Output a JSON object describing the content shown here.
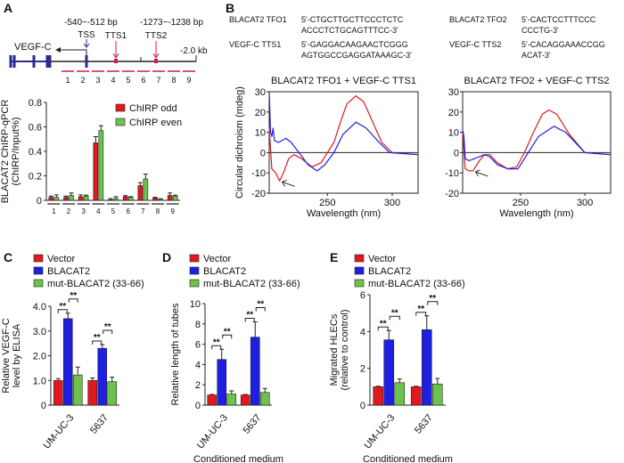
{
  "colors": {
    "red": "#e0191e",
    "blue": "#1f1fe0",
    "green": "#6cc24a",
    "navy": "#2b2b8f",
    "gene_red": "#d4184a"
  },
  "panel_labels": [
    "A",
    "B",
    "C",
    "D",
    "E"
  ],
  "gene_diagram": {
    "gene_label": "VEGF-C",
    "tss_label": "TSS",
    "tts1_label": "TTS1",
    "tts1_range": "-540~-512 bp",
    "tts2_label": "TTS2",
    "tts2_range": "-1273~-1238 bp",
    "scale_label": "-2.0 kb",
    "regions": [
      "1",
      "2",
      "3",
      "4",
      "5",
      "6",
      "7",
      "8",
      "9"
    ]
  },
  "sequences": [
    {
      "name": "BLACAT2 TFO1",
      "line1": "5'-CTGCTTGCTTCCCTCTC",
      "line2": "ACCCTCTGCAGTTTCC-3'"
    },
    {
      "name": "VEGF-C TTS1",
      "line1": "5'-GAGGACAAGAACTCGGG",
      "line2": "AGTGGCCGAGGATAAAGC-3'"
    },
    {
      "name": "BLACAT2 TFO2",
      "line1": "5'-CACTCCTTTCCC",
      "line2": "CCCTG-3'"
    },
    {
      "name": "VEGF-C TTS2",
      "line1": "5'-CACAGGAAACCGG",
      "line2": "ACAT-3'"
    }
  ],
  "chart_data": [
    {
      "id": "A",
      "type": "bar",
      "ylabel": "BLACAT2 ChIRP-qPCR",
      "ylabel2": "(ChIRP/Input%)",
      "categories": [
        "1",
        "2",
        "3",
        "4",
        "5",
        "6",
        "7",
        "8",
        "9"
      ],
      "ylim": [
        0,
        0.8
      ],
      "yticks": [
        "0",
        "0.2",
        "0.4",
        "0.6",
        "0.8"
      ],
      "legend_position": "top-right",
      "series": [
        {
          "name": "ChIRP odd",
          "color": "#e0191e",
          "values": [
            0.025,
            0.025,
            0.03,
            0.47,
            0.005,
            0.03,
            0.12,
            0.02,
            0.04
          ],
          "errors": [
            0.01,
            0.01,
            0.015,
            0.05,
            0.01,
            0.008,
            0.025,
            0.005,
            0.02
          ]
        },
        {
          "name": "ChIRP even",
          "color": "#6cc24a",
          "values": [
            0.025,
            0.04,
            0.035,
            0.57,
            0.015,
            0.025,
            0.175,
            0.01,
            0.035
          ],
          "errors": [
            0.02,
            0.02,
            0.008,
            0.04,
            0.015,
            0.005,
            0.04,
            0.003,
            0.008
          ]
        }
      ]
    },
    {
      "id": "B1",
      "type": "line",
      "title": "BLACAT2 TFO1 + VEGF-C TTS1",
      "xlabel": "Wavelength (nm)",
      "ylabel": "Circular dichroism (mdeg)",
      "xlim": [
        205,
        320
      ],
      "ylim": [
        -20,
        30
      ],
      "xticks": [
        "250",
        "300"
      ],
      "yticks": [
        "-20",
        "-10",
        "0",
        "10",
        "20",
        "30"
      ],
      "series": [
        {
          "color": "#e0191e",
          "x": [
            205,
            207,
            210,
            213,
            216,
            220,
            224,
            230,
            238,
            245,
            250,
            255,
            260,
            265,
            272,
            278,
            285,
            292,
            300,
            320
          ],
          "y": [
            12,
            -8,
            -10,
            -14,
            -10,
            -3,
            -1,
            -3,
            -7,
            -5,
            0,
            5,
            15,
            24,
            28,
            25,
            15,
            5,
            0,
            -1
          ]
        },
        {
          "color": "#1f1fe0",
          "x": [
            205,
            206,
            207,
            208,
            209,
            212,
            218,
            222,
            228,
            235,
            242,
            248,
            255,
            262,
            272,
            280,
            290,
            298,
            320
          ],
          "y": [
            30,
            10,
            8,
            12,
            6,
            5,
            7,
            5,
            0,
            -6,
            -9,
            -6,
            0,
            9,
            15,
            12,
            5,
            0,
            -1
          ]
        }
      ],
      "arrow_at": [
        213,
        -14
      ]
    },
    {
      "id": "B2",
      "type": "line",
      "title": "BLACAT2 TFO2 + VEGF-C TTS2",
      "xlabel": "Wavelength (nm)",
      "xlim": [
        205,
        320
      ],
      "ylim": [
        -20,
        30
      ],
      "xticks": [
        "250",
        "300"
      ],
      "yticks": [
        "-20",
        "-10",
        "0",
        "10",
        "20",
        "30"
      ],
      "series": [
        {
          "color": "#e0191e",
          "x": [
            205,
            207,
            210,
            213,
            218,
            222,
            226,
            232,
            240,
            247,
            253,
            260,
            267,
            272,
            278,
            288,
            300,
            320
          ],
          "y": [
            10,
            -8,
            -9,
            -9,
            -4,
            -1,
            -1,
            -5,
            -8,
            -7,
            0,
            10,
            19,
            21,
            19,
            9,
            0,
            -1
          ]
        },
        {
          "color": "#1f1fe0",
          "x": [
            205,
            206,
            207,
            210,
            214,
            218,
            222,
            226,
            232,
            240,
            248,
            256,
            264,
            276,
            285,
            300,
            320
          ],
          "y": [
            11,
            8,
            -3,
            -4,
            -3,
            -2,
            -1,
            -2,
            -6,
            -8,
            -8,
            0,
            8,
            13,
            10,
            0,
            -1
          ]
        }
      ],
      "arrow_at": [
        213,
        -9
      ]
    },
    {
      "id": "C",
      "type": "bar",
      "ylabel": "Relative VEGF-C",
      "ylabel2": "level by ELISA",
      "categories": [
        "UM-UC-3",
        "5637"
      ],
      "ylim": [
        0,
        4
      ],
      "yticks": [
        "0",
        "1.0",
        "2.0",
        "3.0",
        "4.0"
      ],
      "significance": "**",
      "series": [
        {
          "name": "Vector",
          "color": "#e0191e",
          "values": [
            1.0,
            1.0
          ],
          "errors": [
            0.07,
            0.1
          ]
        },
        {
          "name": "BLACAT2",
          "color": "#1f1fe0",
          "values": [
            3.5,
            2.3
          ],
          "errors": [
            0.22,
            0.15
          ]
        },
        {
          "name": "mut-BLACAT2 (33-66)",
          "color": "#6cc24a",
          "values": [
            1.22,
            0.95
          ],
          "errors": [
            0.32,
            0.18
          ]
        }
      ]
    },
    {
      "id": "D",
      "type": "bar",
      "ylabel": "Relative length of tubes",
      "xlabel": "Conditioned medium",
      "categories": [
        "UM-UC-3",
        "5637"
      ],
      "ylim": [
        0,
        10
      ],
      "yticks": [
        "0",
        "2",
        "4",
        "6",
        "8",
        "10"
      ],
      "significance": "**",
      "series": [
        {
          "name": "Vector",
          "color": "#e0191e",
          "values": [
            1.0,
            1.0
          ],
          "errors": [
            0.05,
            0.05
          ]
        },
        {
          "name": "BLACAT2",
          "color": "#1f1fe0",
          "values": [
            4.5,
            6.7
          ],
          "errors": [
            1.0,
            1.5
          ]
        },
        {
          "name": "mut-BLACAT2 (33-66)",
          "color": "#6cc24a",
          "values": [
            1.1,
            1.25
          ],
          "errors": [
            0.3,
            0.4
          ]
        }
      ]
    },
    {
      "id": "E",
      "type": "bar",
      "ylabel": "Migrated HLECs",
      "ylabel2": "(relative to control)",
      "xlabel": "Conditioned medium",
      "categories": [
        "UM-UC-3",
        "5637"
      ],
      "ylim": [
        0,
        6
      ],
      "yticks": [
        "0",
        "2",
        "4",
        "6"
      ],
      "significance": "**",
      "series": [
        {
          "name": "Vector",
          "color": "#e0191e",
          "values": [
            1.0,
            1.0
          ],
          "errors": [
            0.03,
            0.03
          ]
        },
        {
          "name": "BLACAT2",
          "color": "#1f1fe0",
          "values": [
            3.55,
            4.1
          ],
          "errors": [
            0.5,
            0.75
          ]
        },
        {
          "name": "mut-BLACAT2 (33-66)",
          "color": "#6cc24a",
          "values": [
            1.22,
            1.15
          ],
          "errors": [
            0.2,
            0.3
          ]
        }
      ]
    }
  ]
}
